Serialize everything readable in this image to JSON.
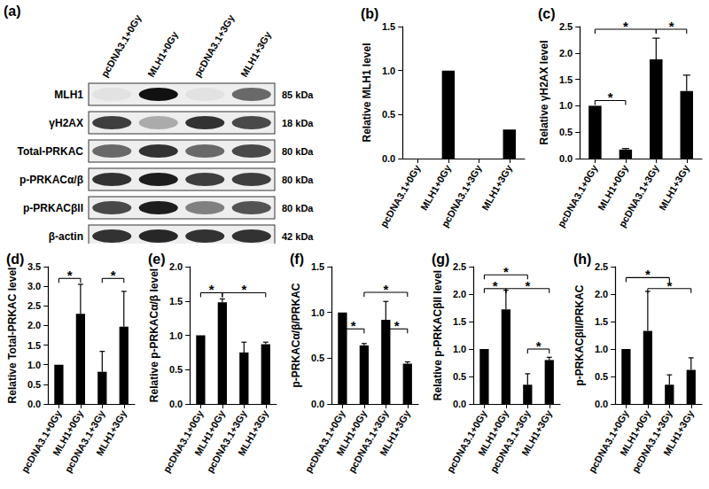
{
  "blot": {
    "panel": "(a)",
    "lanes": [
      "pcDNA3.1+0Gy",
      "MLH1+0Gy",
      "pcDNA3.1+3Gy",
      "MLH1+3Gy"
    ],
    "rows": [
      {
        "name": "MLH1",
        "size": "85 kDa"
      },
      {
        "name": "γH2AX",
        "size": "18 kDa"
      },
      {
        "name": "Total-PRKAC",
        "size": "80 kDa"
      },
      {
        "name": "p-PRKACα/β",
        "size": "80 kDa"
      },
      {
        "name": "p-PRKACβII",
        "size": "80 kDa"
      },
      {
        "name": "β-actin",
        "size": "42 kDa"
      }
    ]
  },
  "chart_data": [
    {
      "panel": "(b)",
      "type": "bar",
      "y_label": "Relative MLH1 level",
      "categories": [
        "pcDNA3.1+0Gy",
        "MLH1+0Gy",
        "pcDNA3.1+3Gy",
        "MLH1+3Gy"
      ],
      "values": [
        0,
        1.0,
        0,
        0.33
      ],
      "color": "#000000",
      "ylim": [
        0,
        1.5
      ],
      "yticks": [
        {
          "value": 0,
          "label": "0.0"
        },
        0.5,
        {
          "value": 1,
          "label": "1.0"
        },
        1.5
      ],
      "annotations": [],
      "grid": false
    },
    {
      "panel": "(c)",
      "type": "bar",
      "y_label": "Relative γH2AX level",
      "categories": [
        "pcDNA3.1+0Gy",
        "MLH1+0Gy",
        "pcDNA3.1+3Gy",
        "MLH1+3Gy"
      ],
      "values": [
        1.0,
        0.17,
        1.88,
        1.28
      ],
      "errors": [
        0,
        0.02,
        0.4,
        0.3
      ],
      "color": "#000000",
      "ylim": [
        0,
        2.5
      ],
      "yticks": [
        {
          "value": 0,
          "label": "0.0"
        },
        0.5,
        {
          "value": 1,
          "label": "1.0"
        },
        1.5,
        {
          "value": 2,
          "label": "2.0"
        },
        2.5
      ],
      "annotations": [
        {
          "from": 0,
          "to": 1,
          "y": 1.1,
          "text": "*"
        },
        {
          "from": 0,
          "to": 2,
          "y": 2.45,
          "text": "*"
        },
        {
          "from": 2,
          "to": 3,
          "y": 2.45,
          "text": "*"
        }
      ],
      "grid": false
    },
    {
      "panel": "(d)",
      "type": "bar",
      "y_label": "Relative Total-PRKAC level",
      "categories": [
        "pcDNA3.1+0Gy",
        "MLH1+0Gy",
        "pcDNA3.1+3Gy",
        "MLH1+3Gy"
      ],
      "values": [
        1.0,
        2.3,
        0.82,
        1.97
      ],
      "errors": [
        0,
        0.75,
        0.52,
        0.9
      ],
      "color": "#000000",
      "ylim": [
        0,
        3.5
      ],
      "yticks": [
        {
          "value": 0,
          "label": "0.0"
        },
        0.5,
        {
          "value": 1,
          "label": "1.0"
        },
        1.5,
        {
          "value": 2,
          "label": "2.0"
        },
        2.5,
        {
          "value": 3,
          "label": "3.0"
        },
        3.5
      ],
      "annotations": [
        {
          "from": 0,
          "to": 1,
          "y": 3.2,
          "text": "*"
        },
        {
          "from": 2,
          "to": 3,
          "y": 3.2,
          "text": "*"
        }
      ],
      "grid": false
    },
    {
      "panel": "(e)",
      "type": "bar",
      "y_label": "Relative p-PRKACα/β level",
      "categories": [
        "pcDNA3.1+0Gy",
        "MLH1+0Gy",
        "pcDNA3.1+3Gy",
        "MLH1+3Gy"
      ],
      "values": [
        1.0,
        1.48,
        0.75,
        0.87
      ],
      "errors": [
        0,
        0.05,
        0.15,
        0.03
      ],
      "color": "#000000",
      "ylim": [
        0,
        2.0
      ],
      "yticks": [
        {
          "value": 0,
          "label": "0.0"
        },
        0.5,
        {
          "value": 1,
          "label": "1.0"
        },
        1.5,
        {
          "value": 2,
          "label": "2.0"
        }
      ],
      "annotations": [
        {
          "from": 0,
          "to": 1,
          "y": 1.62,
          "text": "*"
        },
        {
          "from": 1,
          "to": 3,
          "y": 1.62,
          "text": "*"
        }
      ],
      "grid": false
    },
    {
      "panel": "(f)",
      "type": "bar",
      "y_label": "p-PRKACα/β/PRKAC",
      "categories": [
        "pcDNA3.1+0Gy",
        "MLH1+0Gy",
        "pcDNA3.1+3Gy",
        "MLH1+3Gy"
      ],
      "values": [
        1.0,
        0.64,
        0.92,
        0.44
      ],
      "errors": [
        0,
        0.02,
        0.2,
        0.02
      ],
      "color": "#000000",
      "ylim": [
        0,
        1.5
      ],
      "yticks": [
        {
          "value": 0,
          "label": "0.0"
        },
        0.5,
        {
          "value": 1,
          "label": "1.0"
        },
        1.5
      ],
      "annotations": [
        {
          "from": 0,
          "to": 1,
          "y": 0.82,
          "text": "*"
        },
        {
          "from": 1,
          "to": 3,
          "y": 1.22,
          "text": "*"
        },
        {
          "from": 2,
          "to": 3,
          "y": 0.82,
          "text": "*"
        }
      ],
      "grid": false
    },
    {
      "panel": "(g)",
      "type": "bar",
      "y_label": "Relative p-PRKACβII level",
      "categories": [
        "pcDNA3.1+0Gy",
        "MLH1+0Gy",
        "pcDNA3.1+3Gy",
        "MLH1+3Gy"
      ],
      "values": [
        1.0,
        1.72,
        0.35,
        0.8
      ],
      "errors": [
        0,
        0.35,
        0.2,
        0.05
      ],
      "color": "#000000",
      "ylim": [
        0,
        2.5
      ],
      "yticks": [
        {
          "value": 0,
          "label": "0.0"
        },
        0.5,
        {
          "value": 1,
          "label": "1.0"
        },
        1.5,
        {
          "value": 2,
          "label": "2.0"
        },
        2.5
      ],
      "annotations": [
        {
          "from": 0,
          "to": 2,
          "y": 2.35,
          "text": "*"
        },
        {
          "from": 0,
          "to": 1,
          "y": 2.1,
          "text": "*"
        },
        {
          "from": 1,
          "to": 3,
          "y": 2.1,
          "text": "*"
        },
        {
          "from": 2,
          "to": 3,
          "y": 1.0,
          "text": "*"
        }
      ],
      "grid": false
    },
    {
      "panel": "(h)",
      "type": "bar",
      "y_label": "p-PRKACβII/PRKAC",
      "categories": [
        "pcDNA3.1+0Gy",
        "MLH1+0Gy",
        "pcDNA3.1+3Gy",
        "MLH1+3Gy"
      ],
      "values": [
        1.0,
        1.33,
        0.35,
        0.62
      ],
      "errors": [
        0,
        0.72,
        0.18,
        0.22
      ],
      "color": "#000000",
      "ylim": [
        0,
        2.5
      ],
      "yticks": [
        {
          "value": 0,
          "label": "0.0"
        },
        0.5,
        {
          "value": 1,
          "label": "1.0"
        },
        1.5,
        {
          "value": 2,
          "label": "2.0"
        },
        2.5
      ],
      "annotations": [
        {
          "from": 0,
          "to": 2,
          "y": 2.3,
          "text": "*"
        },
        {
          "from": 1,
          "to": 3,
          "y": 2.1,
          "text": "*"
        }
      ],
      "grid": false
    }
  ]
}
